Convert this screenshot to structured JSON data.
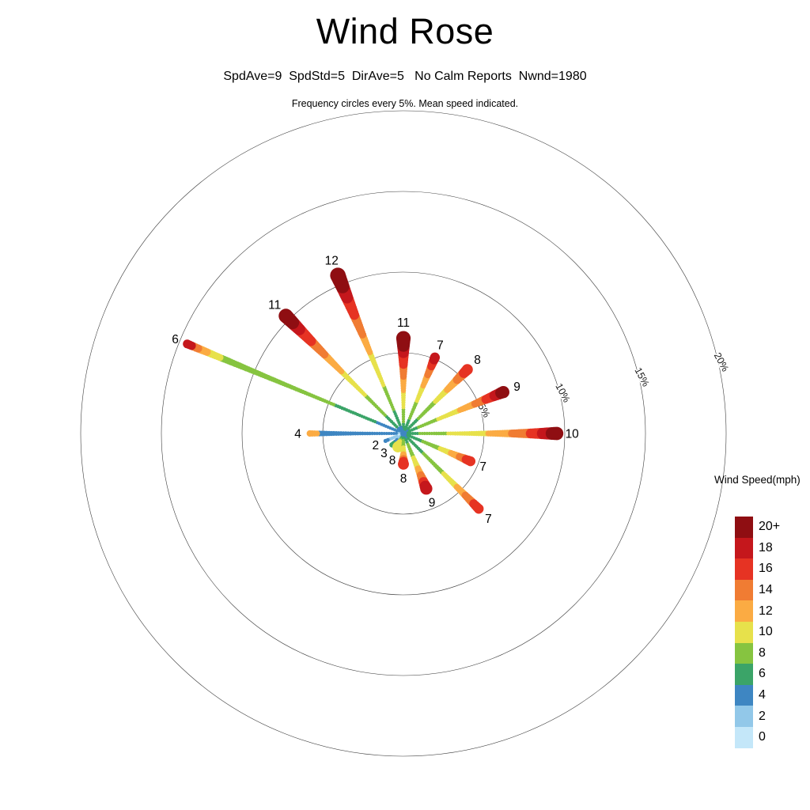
{
  "chart_data": {
    "type": "wind_rose",
    "title": "Wind Rose",
    "stats_line": "SpdAve=9  SpdStd=5  DirAve=5   No Calm Reports  Nwnd=1980",
    "stats": {
      "spd_ave": 9,
      "spd_std": 5,
      "dir_ave": 5,
      "calm_text": "No Calm Reports",
      "nwnd": 1980
    },
    "note": "Frequency circles every 5%. Mean speed indicated.",
    "frequency_rings_pct": [
      5,
      10,
      15,
      20
    ],
    "ring_step_pct": 5,
    "max_ring_pct": 20,
    "ring_label_suffix": "%",
    "legend_title": "Wind Speed(mph)",
    "speed_bins": [
      {
        "label": "20+",
        "value": 20,
        "color": "#8f0e12"
      },
      {
        "label": "18",
        "value": 18,
        "color": "#c5171c"
      },
      {
        "label": "16",
        "value": 16,
        "color": "#e63323"
      },
      {
        "label": "14",
        "value": 14,
        "color": "#f07c33"
      },
      {
        "label": "12",
        "value": 12,
        "color": "#fbab43"
      },
      {
        "label": "10",
        "value": 10,
        "color": "#e7e14b"
      },
      {
        "label": "8",
        "value": 8,
        "color": "#86c440"
      },
      {
        "label": "6",
        "value": 6,
        "color": "#3ba468"
      },
      {
        "label": "4",
        "value": 4,
        "color": "#3e86c2"
      },
      {
        "label": "2",
        "value": 2,
        "color": "#92c8e9"
      },
      {
        "label": "0",
        "value": 0,
        "color": "#c4e7f9"
      }
    ],
    "petals": [
      {
        "angle_deg": 0.0,
        "freq_pct": 9.5,
        "mean_speed": 10,
        "segments": [
          [
            6,
            0.1
          ],
          [
            8,
            0.28
          ],
          [
            10,
            0.55
          ],
          [
            12,
            0.7
          ],
          [
            14,
            0.82
          ],
          [
            16,
            0.9
          ],
          [
            18,
            0.96
          ],
          [
            20,
            1.0
          ]
        ]
      },
      {
        "angle_deg": 22.5,
        "freq_pct": 6.7,
        "mean_speed": 9,
        "segments": [
          [
            6,
            0.14
          ],
          [
            8,
            0.34
          ],
          [
            10,
            0.55
          ],
          [
            12,
            0.7
          ],
          [
            14,
            0.82
          ],
          [
            16,
            0.9
          ],
          [
            18,
            0.96
          ],
          [
            20,
            1.0
          ]
        ]
      },
      {
        "angle_deg": 45.0,
        "freq_pct": 5.6,
        "mean_speed": 8,
        "segments": [
          [
            4,
            0.06
          ],
          [
            6,
            0.22
          ],
          [
            8,
            0.48
          ],
          [
            10,
            0.68
          ],
          [
            12,
            0.82
          ],
          [
            14,
            0.93
          ],
          [
            16,
            1.0
          ]
        ]
      },
      {
        "angle_deg": 67.5,
        "freq_pct": 5.1,
        "mean_speed": 7,
        "segments": [
          [
            6,
            0.18
          ],
          [
            8,
            0.42
          ],
          [
            10,
            0.62
          ],
          [
            12,
            0.76
          ],
          [
            14,
            0.88
          ],
          [
            16,
            0.96
          ],
          [
            18,
            1.0
          ]
        ]
      },
      {
        "angle_deg": 90.0,
        "freq_pct": 5.9,
        "mean_speed": 11,
        "segments": [
          [
            6,
            0.12
          ],
          [
            8,
            0.26
          ],
          [
            10,
            0.44
          ],
          [
            12,
            0.58
          ],
          [
            14,
            0.72
          ],
          [
            16,
            0.84
          ],
          [
            18,
            0.92
          ],
          [
            20,
            1.0
          ]
        ]
      },
      {
        "angle_deg": 112.5,
        "freq_pct": 10.6,
        "mean_speed": 12,
        "segments": [
          [
            4,
            0.05
          ],
          [
            6,
            0.14
          ],
          [
            8,
            0.3
          ],
          [
            10,
            0.5
          ],
          [
            12,
            0.62
          ],
          [
            14,
            0.74
          ],
          [
            16,
            0.86
          ],
          [
            18,
            0.93
          ],
          [
            20,
            1.0
          ]
        ]
      },
      {
        "angle_deg": 135.0,
        "freq_pct": 10.3,
        "mean_speed": 11,
        "segments": [
          [
            4,
            0.05
          ],
          [
            6,
            0.15
          ],
          [
            8,
            0.32
          ],
          [
            10,
            0.52
          ],
          [
            12,
            0.66
          ],
          [
            14,
            0.78
          ],
          [
            16,
            0.88
          ],
          [
            18,
            0.94
          ],
          [
            20,
            1.0
          ]
        ]
      },
      {
        "angle_deg": 157.5,
        "freq_pct": 14.5,
        "mean_speed": 6,
        "segments": [
          [
            4,
            0.13
          ],
          [
            6,
            0.32
          ],
          [
            8,
            0.84
          ],
          [
            10,
            0.9
          ],
          [
            12,
            0.94
          ],
          [
            14,
            0.97
          ],
          [
            18,
            1.0
          ]
        ]
      },
      {
        "angle_deg": 180.0,
        "freq_pct": 5.8,
        "mean_speed": 4,
        "segments": [
          [
            2,
            0.06
          ],
          [
            4,
            0.9
          ],
          [
            12,
            1.0
          ]
        ]
      },
      {
        "angle_deg": 202.5,
        "freq_pct": 1.2,
        "mean_speed": 2,
        "segments": [
          [
            0,
            0.35
          ],
          [
            2,
            0.75
          ],
          [
            4,
            1.0
          ]
        ]
      },
      {
        "angle_deg": 225.0,
        "freq_pct": 1.0,
        "mean_speed": 3,
        "segments": [
          [
            2,
            0.45
          ],
          [
            4,
            0.85
          ],
          [
            6,
            1.0
          ]
        ]
      },
      {
        "angle_deg": 247.5,
        "freq_pct": 0.9,
        "mean_speed": 8,
        "segments": [
          [
            6,
            0.35
          ],
          [
            8,
            0.65
          ],
          [
            10,
            1.0
          ]
        ]
      },
      {
        "angle_deg": 270.0,
        "freq_pct": 1.9,
        "mean_speed": 8,
        "segments": [
          [
            6,
            0.2
          ],
          [
            8,
            0.45
          ],
          [
            10,
            0.65
          ],
          [
            12,
            0.8
          ],
          [
            14,
            0.92
          ],
          [
            16,
            1.0
          ]
        ]
      },
      {
        "angle_deg": 292.5,
        "freq_pct": 3.7,
        "mean_speed": 9,
        "segments": [
          [
            6,
            0.18
          ],
          [
            8,
            0.4
          ],
          [
            10,
            0.6
          ],
          [
            12,
            0.74
          ],
          [
            14,
            0.86
          ],
          [
            16,
            0.95
          ],
          [
            18,
            1.0
          ]
        ]
      },
      {
        "angle_deg": 315.0,
        "freq_pct": 6.6,
        "mean_speed": 7,
        "segments": [
          [
            4,
            0.06
          ],
          [
            6,
            0.25
          ],
          [
            8,
            0.52
          ],
          [
            10,
            0.7
          ],
          [
            12,
            0.82
          ],
          [
            14,
            0.92
          ],
          [
            16,
            1.0
          ]
        ]
      },
      {
        "angle_deg": 337.5,
        "freq_pct": 4.5,
        "mean_speed": 7,
        "segments": [
          [
            4,
            0.06
          ],
          [
            6,
            0.26
          ],
          [
            8,
            0.52
          ],
          [
            10,
            0.7
          ],
          [
            12,
            0.83
          ],
          [
            14,
            0.93
          ],
          [
            16,
            1.0
          ]
        ]
      }
    ]
  }
}
